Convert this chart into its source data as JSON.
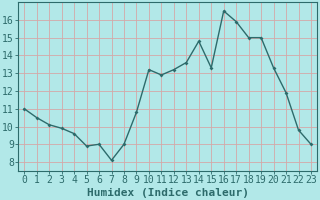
{
  "x": [
    0,
    1,
    2,
    3,
    4,
    5,
    6,
    7,
    8,
    9,
    10,
    11,
    12,
    13,
    14,
    15,
    16,
    17,
    18,
    19,
    20,
    21,
    22,
    23
  ],
  "y": [
    11.0,
    10.5,
    10.1,
    9.9,
    9.6,
    8.9,
    9.0,
    8.1,
    9.0,
    10.8,
    13.2,
    12.9,
    13.2,
    13.6,
    14.8,
    13.3,
    16.5,
    15.9,
    15.0,
    15.0,
    13.3,
    11.9,
    9.8,
    9.0
  ],
  "line_color": "#2d6b6b",
  "marker": "D",
  "marker_size": 2.0,
  "bg_color": "#b2e8e8",
  "grid_color": "#d4a8a8",
  "xlabel": "Humidex (Indice chaleur)",
  "ylim": [
    7.5,
    17.0
  ],
  "xlim": [
    -0.5,
    23.5
  ],
  "yticks": [
    8,
    9,
    10,
    11,
    12,
    13,
    14,
    15,
    16
  ],
  "xticks": [
    0,
    1,
    2,
    3,
    4,
    5,
    6,
    7,
    8,
    9,
    10,
    11,
    12,
    13,
    14,
    15,
    16,
    17,
    18,
    19,
    20,
    21,
    22,
    23
  ],
  "tick_color": "#2d6b6b",
  "label_color": "#2d6b6b",
  "font_size": 7
}
